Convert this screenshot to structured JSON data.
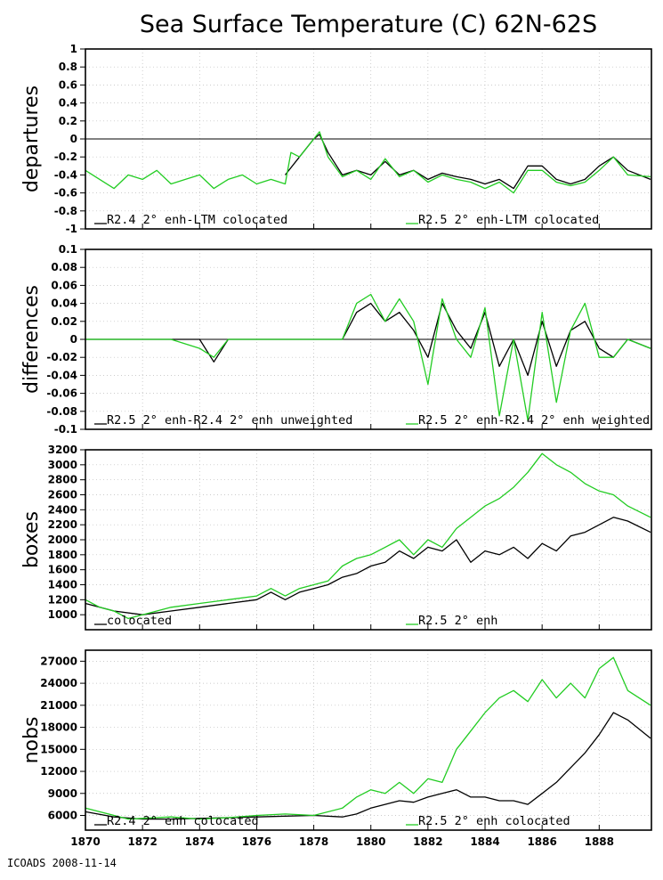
{
  "title": "Sea Surface Temperature (C) 62N-62S",
  "footer": "ICOADS 2008-11-14",
  "colors": {
    "black": "#000000",
    "green": "#22cc22"
  },
  "chart_data": [
    {
      "type": "line",
      "ylabel": "departures",
      "ylim": [
        -1,
        1
      ],
      "yticks": [
        "1",
        "0.8",
        "0.6",
        "0.4",
        "0.2",
        "0",
        "-0.2",
        "-0.4",
        "-0.6",
        "-0.8",
        "-1"
      ],
      "zero_line": true,
      "grid": true,
      "legend": [
        {
          "label": "R2.4 2° enh-LTM colocated",
          "color": "black"
        },
        {
          "label": "R2.5 2° enh-LTM colocated",
          "color": "green"
        }
      ],
      "series": [
        {
          "name": "R2.4 2° enh-LTM colocated",
          "color": "black",
          "x": [
            1877.0,
            1877.5,
            1878.0,
            1878.2,
            1878.5,
            1879.0,
            1879.5,
            1880.0,
            1880.5,
            1881.0,
            1881.5,
            1882.0,
            1882.5,
            1883.0,
            1883.5,
            1884.0,
            1884.5,
            1885.0,
            1885.5,
            1886.0,
            1886.5,
            1887.0,
            1887.5,
            1888.0,
            1888.5,
            1889.0,
            1889.8
          ],
          "values": [
            -0.4,
            -0.2,
            0.0,
            0.05,
            -0.15,
            -0.4,
            -0.35,
            -0.4,
            -0.25,
            -0.4,
            -0.35,
            -0.45,
            -0.38,
            -0.42,
            -0.45,
            -0.5,
            -0.45,
            -0.55,
            -0.3,
            -0.3,
            -0.45,
            -0.5,
            -0.45,
            -0.3,
            -0.2,
            -0.35,
            -0.45
          ]
        },
        {
          "name": "R2.5 2° enh-LTM colocated",
          "color": "green",
          "x": [
            1870.0,
            1870.5,
            1871.0,
            1871.5,
            1872.0,
            1872.5,
            1873.0,
            1873.5,
            1874.0,
            1874.5,
            1875.0,
            1875.5,
            1876.0,
            1876.5,
            1877.0,
            1877.2,
            1877.5,
            1878.0,
            1878.2,
            1878.5,
            1879.0,
            1879.5,
            1880.0,
            1880.5,
            1881.0,
            1881.5,
            1882.0,
            1882.5,
            1883.0,
            1883.5,
            1884.0,
            1884.5,
            1885.0,
            1885.5,
            1886.0,
            1886.5,
            1887.0,
            1887.5,
            1888.0,
            1888.5,
            1889.0,
            1889.8
          ],
          "values": [
            -0.35,
            -0.45,
            -0.55,
            -0.4,
            -0.45,
            -0.35,
            -0.5,
            -0.45,
            -0.4,
            -0.55,
            -0.45,
            -0.4,
            -0.5,
            -0.45,
            -0.5,
            -0.15,
            -0.2,
            0.0,
            0.08,
            -0.2,
            -0.42,
            -0.35,
            -0.45,
            -0.22,
            -0.42,
            -0.35,
            -0.48,
            -0.4,
            -0.45,
            -0.48,
            -0.55,
            -0.48,
            -0.6,
            -0.35,
            -0.35,
            -0.48,
            -0.52,
            -0.48,
            -0.35,
            -0.2,
            -0.4,
            -0.42
          ]
        }
      ]
    },
    {
      "type": "line",
      "ylabel": "differences",
      "ylim": [
        -0.1,
        0.1
      ],
      "yticks": [
        "0.1",
        "0.08",
        "0.06",
        "0.04",
        "0.02",
        "0",
        "-0.02",
        "-0.04",
        "-0.06",
        "-0.08",
        "-0.1"
      ],
      "zero_line": true,
      "grid": true,
      "legend": [
        {
          "label": "R2.5 2° enh-R2.4 2° enh unweighted",
          "color": "black"
        },
        {
          "label": "R2.5 2° enh-R2.4 2° enh weighted",
          "color": "green"
        }
      ],
      "series": [
        {
          "name": "R2.5 2° enh-R2.4 2° enh unweighted",
          "color": "black",
          "x": [
            1870.0,
            1871.0,
            1872.0,
            1873.0,
            1874.0,
            1874.5,
            1875.0,
            1876.0,
            1877.0,
            1878.0,
            1879.0,
            1879.5,
            1880.0,
            1880.5,
            1881.0,
            1881.5,
            1882.0,
            1882.5,
            1883.0,
            1883.5,
            1884.0,
            1884.5,
            1885.0,
            1885.5,
            1886.0,
            1886.5,
            1887.0,
            1887.5,
            1888.0,
            1888.5,
            1889.0,
            1889.8
          ],
          "values": [
            0.0,
            0.0,
            0.0,
            0.0,
            0.0,
            -0.025,
            0.0,
            0.0,
            0.0,
            0.0,
            0.0,
            0.03,
            0.04,
            0.02,
            0.03,
            0.01,
            -0.02,
            0.04,
            0.01,
            -0.01,
            0.03,
            -0.03,
            0.0,
            -0.04,
            0.02,
            -0.03,
            0.01,
            0.02,
            -0.01,
            -0.02,
            0.0,
            -0.01
          ]
        },
        {
          "name": "R2.5 2° enh-R2.4 2° enh weighted",
          "color": "green",
          "x": [
            1870.0,
            1871.0,
            1872.0,
            1873.0,
            1874.0,
            1874.5,
            1875.0,
            1876.0,
            1877.0,
            1878.0,
            1879.0,
            1879.5,
            1880.0,
            1880.5,
            1881.0,
            1881.5,
            1882.0,
            1882.5,
            1883.0,
            1883.5,
            1884.0,
            1884.5,
            1885.0,
            1885.5,
            1886.0,
            1886.5,
            1887.0,
            1887.5,
            1888.0,
            1888.5,
            1889.0,
            1889.8
          ],
          "values": [
            0.0,
            0.0,
            0.0,
            0.0,
            -0.01,
            -0.02,
            0.0,
            0.0,
            0.0,
            0.0,
            0.0,
            0.04,
            0.05,
            0.02,
            0.045,
            0.02,
            -0.05,
            0.045,
            0.0,
            -0.02,
            0.035,
            -0.085,
            0.0,
            -0.09,
            0.03,
            -0.07,
            0.01,
            0.04,
            -0.02,
            -0.02,
            0.0,
            -0.01
          ]
        }
      ]
    },
    {
      "type": "line",
      "ylabel": "boxes",
      "ylim": [
        800,
        3200
      ],
      "yticks": [
        "3200",
        "3000",
        "2800",
        "2600",
        "2400",
        "2200",
        "2000",
        "1800",
        "1600",
        "1400",
        "1200",
        "1000"
      ],
      "zero_line": false,
      "grid": true,
      "legend": [
        {
          "label": "colocated",
          "color": "black"
        },
        {
          "label": "R2.5 2° enh",
          "color": "green"
        }
      ],
      "series": [
        {
          "name": "colocated",
          "color": "black",
          "x": [
            1870.0,
            1871.0,
            1872.0,
            1873.0,
            1874.0,
            1875.0,
            1876.0,
            1876.5,
            1877.0,
            1877.5,
            1878.0,
            1878.5,
            1879.0,
            1879.5,
            1880.0,
            1880.5,
            1881.0,
            1881.5,
            1882.0,
            1882.5,
            1883.0,
            1883.5,
            1884.0,
            1884.5,
            1885.0,
            1885.5,
            1886.0,
            1886.5,
            1887.0,
            1887.5,
            1888.0,
            1888.5,
            1889.0,
            1889.8
          ],
          "values": [
            1150,
            1050,
            1000,
            1050,
            1100,
            1150,
            1200,
            1300,
            1200,
            1300,
            1350,
            1400,
            1500,
            1550,
            1650,
            1700,
            1850,
            1750,
            1900,
            1850,
            2000,
            1700,
            1850,
            1800,
            1900,
            1750,
            1950,
            1850,
            2050,
            2100,
            2200,
            2300,
            2250,
            2100
          ]
        },
        {
          "name": "R2.5 2° enh",
          "color": "green",
          "x": [
            1870.0,
            1870.5,
            1871.0,
            1871.5,
            1872.0,
            1872.5,
            1873.0,
            1874.0,
            1875.0,
            1876.0,
            1876.5,
            1877.0,
            1877.5,
            1878.0,
            1878.5,
            1879.0,
            1879.5,
            1880.0,
            1880.5,
            1881.0,
            1881.5,
            1882.0,
            1882.5,
            1883.0,
            1883.5,
            1884.0,
            1884.5,
            1885.0,
            1885.5,
            1886.0,
            1886.5,
            1887.0,
            1887.5,
            1888.0,
            1888.5,
            1889.0,
            1889.8
          ],
          "values": [
            1200,
            1100,
            1050,
            950,
            1000,
            1050,
            1100,
            1150,
            1200,
            1250,
            1350,
            1250,
            1350,
            1400,
            1450,
            1650,
            1750,
            1800,
            1900,
            2000,
            1800,
            2000,
            1900,
            2150,
            2300,
            2450,
            2550,
            2700,
            2900,
            3150,
            3000,
            2900,
            2750,
            2650,
            2600,
            2450,
            2300
          ]
        }
      ]
    },
    {
      "type": "line",
      "ylabel": "nobs",
      "ylim": [
        4000,
        28500
      ],
      "yticks": [
        "27000",
        "24000",
        "21000",
        "18000",
        "15000",
        "12000",
        "9000",
        "6000"
      ],
      "zero_line": false,
      "grid": true,
      "legend": [
        {
          "label": "R2.4 2° enh colocated",
          "color": "black"
        },
        {
          "label": "R2.5 2° enh colocated",
          "color": "green"
        }
      ],
      "series": [
        {
          "name": "R2.4 2° enh colocated",
          "color": "black",
          "x": [
            1870.0,
            1871.0,
            1872.0,
            1873.0,
            1874.0,
            1875.0,
            1876.0,
            1877.0,
            1878.0,
            1879.0,
            1879.5,
            1880.0,
            1880.5,
            1881.0,
            1881.5,
            1882.0,
            1882.5,
            1883.0,
            1883.5,
            1884.0,
            1884.5,
            1885.0,
            1885.5,
            1886.0,
            1886.5,
            1887.0,
            1887.5,
            1888.0,
            1888.5,
            1889.0,
            1889.8
          ],
          "values": [
            6500,
            5800,
            5500,
            5500,
            5600,
            5700,
            5800,
            5900,
            6000,
            5800,
            6200,
            7000,
            7500,
            8000,
            7800,
            8500,
            9000,
            9500,
            8500,
            8500,
            8000,
            8000,
            7500,
            9000,
            10500,
            12500,
            14500,
            17000,
            20000,
            19000,
            16500
          ]
        },
        {
          "name": "R2.5 2° enh colocated",
          "color": "green",
          "x": [
            1870.0,
            1870.5,
            1871.0,
            1871.5,
            1872.0,
            1873.0,
            1874.0,
            1875.0,
            1876.0,
            1877.0,
            1878.0,
            1879.0,
            1879.5,
            1880.0,
            1880.5,
            1881.0,
            1881.5,
            1882.0,
            1882.5,
            1883.0,
            1883.5,
            1884.0,
            1884.5,
            1885.0,
            1885.5,
            1886.0,
            1886.5,
            1887.0,
            1887.5,
            1888.0,
            1888.5,
            1889.0,
            1889.8
          ],
          "values": [
            7000,
            6500,
            6000,
            5500,
            5600,
            5800,
            5500,
            5700,
            6000,
            6200,
            6000,
            7000,
            8500,
            9500,
            9000,
            10500,
            9000,
            11000,
            10500,
            15000,
            17500,
            20000,
            22000,
            23000,
            21500,
            24500,
            22000,
            24000,
            22000,
            26000,
            27500,
            23000,
            21000
          ]
        }
      ]
    }
  ],
  "xaxis": {
    "min": 1870,
    "max": 1889.83,
    "ticks": [
      1870,
      1872,
      1874,
      1876,
      1878,
      1880,
      1882,
      1884,
      1886,
      1888
    ]
  }
}
